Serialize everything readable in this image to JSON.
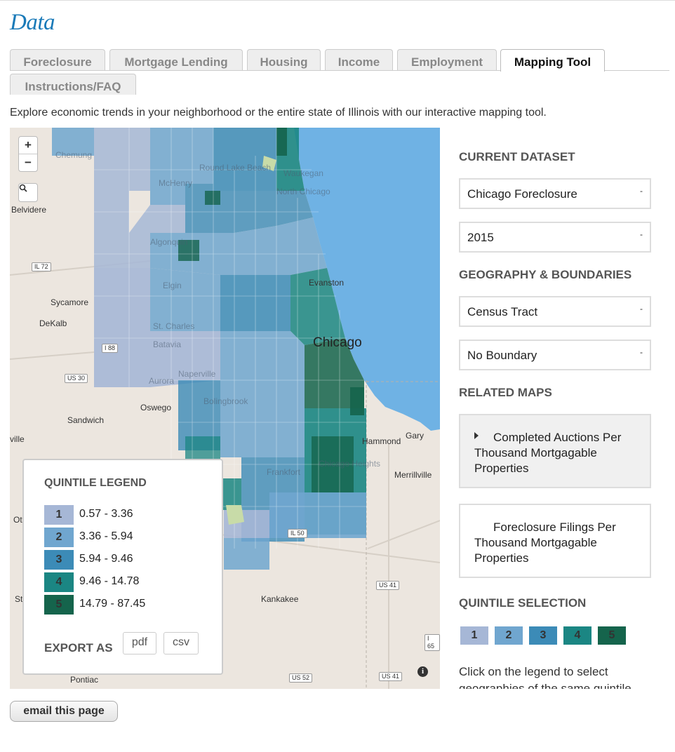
{
  "page": {
    "title": "Data",
    "intro": "Explore economic trends in your neighborhood or the entire state of Illinois with our interactive mapping tool."
  },
  "tabs": [
    {
      "label": "Foreclosure",
      "active": false
    },
    {
      "label": "Mortgage Lending",
      "active": false
    },
    {
      "label": "Housing",
      "active": false
    },
    {
      "label": "Income",
      "active": false
    },
    {
      "label": "Employment",
      "active": false
    },
    {
      "label": "Mapping Tool",
      "active": true
    },
    {
      "label": "Instructions/FAQ",
      "active": false
    }
  ],
  "map": {
    "zoom_in": "+",
    "zoom_out": "−",
    "search_icon": "magnifier-icon",
    "info_icon": "info-icon",
    "colors": {
      "land": "#ece6df",
      "water": "#6fb2e4",
      "q1": "#a6b7d6",
      "q2": "#70a6cf",
      "q3": "#3c8bb7",
      "q4": "#1b8683",
      "q5": "#15644c"
    },
    "labels": {
      "chemung": "Chemung",
      "belvidere": "Belvidere",
      "sycamore": "Sycamore",
      "dekalb": "DeKalb",
      "oswego": "Oswego",
      "sandwich": "Sandwich",
      "ville": "ville",
      "chicago": "Chicago",
      "evanston": "Evanston",
      "hammond": "Hammond",
      "gary": "Gary",
      "merrillville": "Merrillville",
      "kankakee": "Kankakee",
      "pontiac": "Pontiac",
      "ot": "Ot",
      "st": "St",
      "north_chicago": "North Chicago",
      "waukegan": "Waukegan",
      "mchenry": "McHenry",
      "round_lake_beach": "Round Lake Beach",
      "algonquin": "Algonquin",
      "elgin": "Elgin",
      "st_charles": "St. Charles",
      "batavia": "Batavia",
      "aurora": "Aurora",
      "naperville": "Naperville",
      "bolingbrook": "Bolingbrook",
      "frankfort": "Frankfort",
      "chicago_heights": "Chicago Heights"
    },
    "shields": {
      "il72": "IL 72",
      "i88": "I 88",
      "us30": "US 30",
      "il50": "IL 50",
      "us41_upper": "US 41",
      "i65": "I 65",
      "us52": "US 52",
      "us41_lower": "US 41"
    }
  },
  "legend": {
    "title": "QUINTILE LEGEND",
    "items": [
      {
        "num": "1",
        "range": "0.57 - 3.36",
        "color": "#a6b7d6"
      },
      {
        "num": "2",
        "range": "3.36 - 5.94",
        "color": "#70a6cf"
      },
      {
        "num": "3",
        "range": "5.94 - 9.46",
        "color": "#3c8bb7"
      },
      {
        "num": "4",
        "range": "9.46 - 14.78",
        "color": "#1b8683"
      },
      {
        "num": "5",
        "range": "14.79 - 87.45",
        "color": "#15644c"
      }
    ],
    "export_label": "EXPORT AS",
    "export_pdf": "pdf",
    "export_csv": "csv"
  },
  "sidebar": {
    "current_dataset_heading": "CURRENT DATASET",
    "dataset_value": "Chicago Foreclosure",
    "year_value": "2015",
    "geography_heading": "GEOGRAPHY & BOUNDARIES",
    "geography_value": "Census Tract",
    "boundary_value": "No Boundary",
    "select_arrow": "-",
    "related_heading": "RELATED MAPS",
    "related": [
      {
        "label": "Completed Auctions Per Thousand Mortgagable Properties",
        "selected": true
      },
      {
        "label": "Foreclosure Filings Per Thousand Mortgagable Properties",
        "selected": false
      }
    ],
    "quintile_heading": "QUINTILE SELECTION",
    "quintiles": [
      "1",
      "2",
      "3",
      "4",
      "5"
    ],
    "note": "Click on the legend to select geographies of the same quintile."
  },
  "footer": {
    "email_label": "email this page"
  }
}
